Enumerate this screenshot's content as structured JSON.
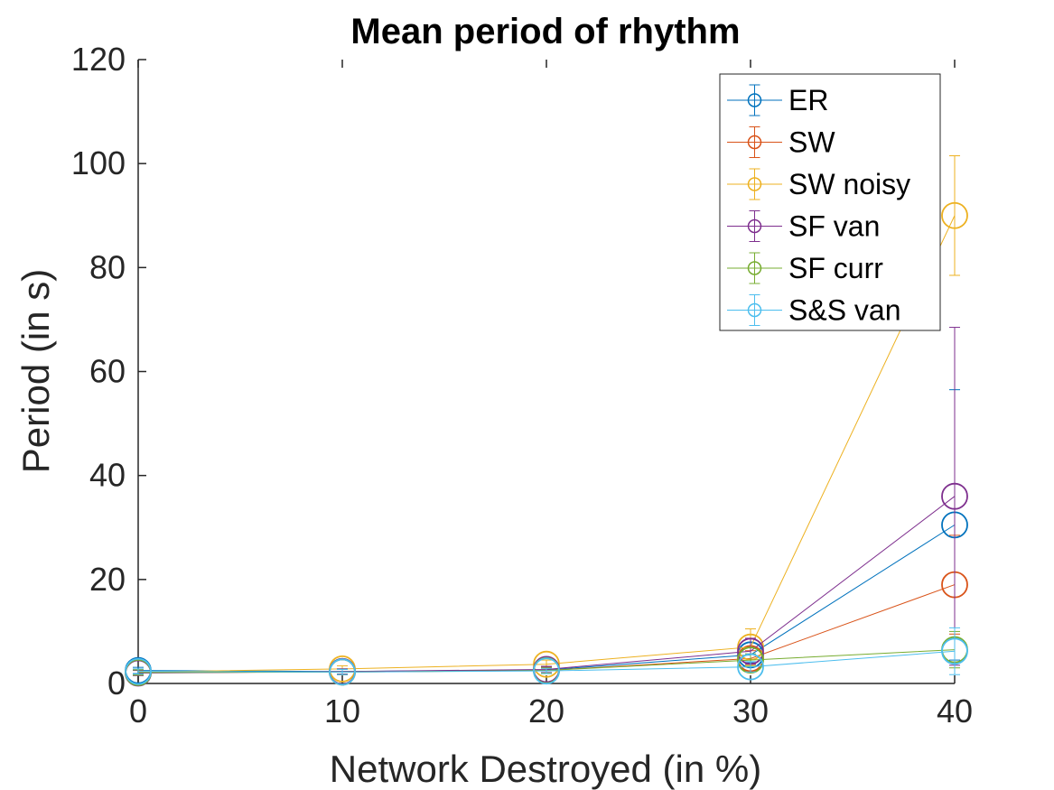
{
  "chart_data": {
    "type": "line",
    "title": "Mean period of rhythm",
    "xlabel": "Network Destroyed (in %)",
    "ylabel": "Period (in s)",
    "xlim": [
      0,
      40
    ],
    "ylim": [
      0,
      120
    ],
    "xticks": [
      0,
      10,
      20,
      30,
      40
    ],
    "yticks": [
      0,
      20,
      40,
      60,
      80,
      100,
      120
    ],
    "grid": false,
    "legend_position": "top-right",
    "x": [
      0,
      10,
      20,
      30,
      40
    ],
    "series": [
      {
        "name": "ER",
        "color": "#0072BD",
        "values": [
          2.5,
          2.3,
          2.6,
          5.5,
          30.5
        ],
        "err_low": [
          0.6,
          0.5,
          0.6,
          1.5,
          26
        ],
        "err_high": [
          0.6,
          0.5,
          0.6,
          1.5,
          26
        ]
      },
      {
        "name": "SW",
        "color": "#D95319",
        "values": [
          2.1,
          2.2,
          2.5,
          4.8,
          19
        ],
        "err_low": [
          0.5,
          0.5,
          0.6,
          1.5,
          9.5
        ],
        "err_high": [
          0.5,
          0.5,
          0.6,
          1.5,
          9.5
        ]
      },
      {
        "name": "SW noisy",
        "color": "#EDB120",
        "values": [
          2.2,
          2.8,
          3.7,
          7.0,
          90
        ],
        "err_low": [
          0.5,
          0.6,
          0.8,
          3.5,
          11.5
        ],
        "err_high": [
          0.5,
          0.6,
          0.8,
          3.5,
          11.5
        ]
      },
      {
        "name": "SF van",
        "color": "#7E2F8E",
        "values": [
          2.0,
          2.3,
          2.7,
          6.2,
          36
        ],
        "err_low": [
          0.5,
          0.5,
          0.6,
          2.5,
          32.5
        ],
        "err_high": [
          0.5,
          0.5,
          0.6,
          2.5,
          32.5
        ]
      },
      {
        "name": "SF curr",
        "color": "#77AC30",
        "values": [
          2.1,
          2.2,
          2.5,
          4.5,
          6.5
        ],
        "err_low": [
          0.5,
          0.5,
          0.5,
          1.2,
          3.5
        ],
        "err_high": [
          0.5,
          0.5,
          0.5,
          1.2,
          3.5
        ]
      },
      {
        "name": "S&S van",
        "color": "#4DBEEE",
        "values": [
          2.3,
          2.2,
          2.4,
          3.2,
          6.2
        ],
        "err_low": [
          0.5,
          0.5,
          0.5,
          1.0,
          4.5
        ],
        "err_high": [
          0.5,
          0.5,
          0.5,
          1.0,
          4.5
        ]
      }
    ]
  }
}
